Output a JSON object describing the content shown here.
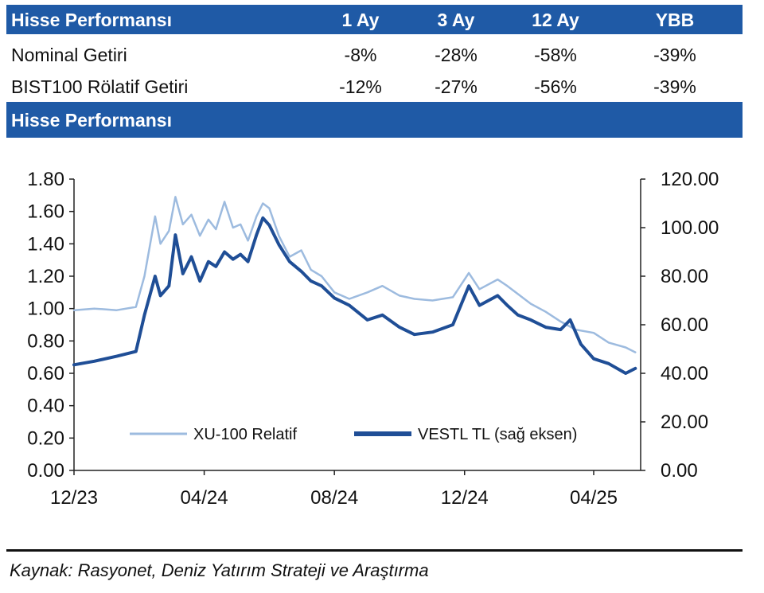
{
  "table": {
    "header": {
      "title": "Hisse Performansı",
      "cols": [
        "1 Ay",
        "3 Ay",
        "12 Ay",
        "YBB"
      ]
    },
    "rows": [
      {
        "label": "Nominal Getiri",
        "values": [
          "-8%",
          "-28%",
          "-58%",
          "-39%"
        ]
      },
      {
        "label": "BIST100 Rölatif Getiri",
        "values": [
          "-12%",
          "-27%",
          "-56%",
          "-39%"
        ]
      }
    ],
    "colors": {
      "header_bg": "#1f5aa6",
      "header_text": "#ffffff"
    }
  },
  "chart_section": {
    "title": "Hisse Performansı"
  },
  "chart_data": {
    "type": "line",
    "x_ticks": [
      "12/23",
      "04/24",
      "08/24",
      "12/24",
      "04/25"
    ],
    "left_axis": {
      "ylim": [
        0.0,
        1.8
      ],
      "ticks": [
        "0.00",
        "0.20",
        "0.40",
        "0.60",
        "0.80",
        "1.00",
        "1.20",
        "1.40",
        "1.60",
        "1.80"
      ]
    },
    "right_axis": {
      "ylim": [
        0.0,
        120.0
      ],
      "ticks": [
        "0.00",
        "20.00",
        "40.00",
        "60.00",
        "80.00",
        "100.00",
        "120.00"
      ]
    },
    "x_domain": [
      "2023-12-01",
      "2025-05-15"
    ],
    "series": [
      {
        "name": "XU-100 Relatif",
        "axis": "left",
        "color": "#9dbbdf",
        "points": [
          [
            "2023-12-01",
            0.99
          ],
          [
            "2023-12-20",
            1.0
          ],
          [
            "2024-01-10",
            0.99
          ],
          [
            "2024-01-28",
            1.01
          ],
          [
            "2024-02-05",
            1.2
          ],
          [
            "2024-02-15",
            1.57
          ],
          [
            "2024-02-20",
            1.4
          ],
          [
            "2024-02-28",
            1.48
          ],
          [
            "2024-03-05",
            1.69
          ],
          [
            "2024-03-12",
            1.52
          ],
          [
            "2024-03-20",
            1.58
          ],
          [
            "2024-03-28",
            1.45
          ],
          [
            "2024-04-05",
            1.55
          ],
          [
            "2024-04-12",
            1.49
          ],
          [
            "2024-04-20",
            1.66
          ],
          [
            "2024-04-28",
            1.5
          ],
          [
            "2024-05-05",
            1.52
          ],
          [
            "2024-05-12",
            1.42
          ],
          [
            "2024-05-20",
            1.57
          ],
          [
            "2024-05-26",
            1.65
          ],
          [
            "2024-06-01",
            1.62
          ],
          [
            "2024-06-10",
            1.45
          ],
          [
            "2024-06-20",
            1.32
          ],
          [
            "2024-07-01",
            1.36
          ],
          [
            "2024-07-10",
            1.24
          ],
          [
            "2024-07-20",
            1.2
          ],
          [
            "2024-08-01",
            1.1
          ],
          [
            "2024-08-15",
            1.06
          ],
          [
            "2024-09-01",
            1.1
          ],
          [
            "2024-09-15",
            1.14
          ],
          [
            "2024-10-01",
            1.08
          ],
          [
            "2024-10-15",
            1.06
          ],
          [
            "2024-11-01",
            1.05
          ],
          [
            "2024-11-20",
            1.07
          ],
          [
            "2024-12-05",
            1.22
          ],
          [
            "2024-12-15",
            1.12
          ],
          [
            "2025-01-01",
            1.18
          ],
          [
            "2025-01-10",
            1.14
          ],
          [
            "2025-01-20",
            1.09
          ],
          [
            "2025-02-01",
            1.03
          ],
          [
            "2025-02-15",
            0.98
          ],
          [
            "2025-03-01",
            0.92
          ],
          [
            "2025-03-15",
            0.87
          ],
          [
            "2025-04-01",
            0.85
          ],
          [
            "2025-04-15",
            0.79
          ],
          [
            "2025-05-01",
            0.76
          ],
          [
            "2025-05-10",
            0.73
          ]
        ]
      },
      {
        "name": "VESTL TL (sağ eksen)",
        "axis": "right",
        "color": "#1f4e96",
        "points": [
          [
            "2023-12-01",
            43.5
          ],
          [
            "2023-12-20",
            45.0
          ],
          [
            "2024-01-10",
            47.0
          ],
          [
            "2024-01-28",
            49.0
          ],
          [
            "2024-02-05",
            64.0
          ],
          [
            "2024-02-15",
            80.0
          ],
          [
            "2024-02-20",
            72.0
          ],
          [
            "2024-02-28",
            76.0
          ],
          [
            "2024-03-05",
            97.0
          ],
          [
            "2024-03-12",
            81.0
          ],
          [
            "2024-03-20",
            88.0
          ],
          [
            "2024-03-28",
            78.0
          ],
          [
            "2024-04-05",
            86.0
          ],
          [
            "2024-04-12",
            84.0
          ],
          [
            "2024-04-20",
            90.0
          ],
          [
            "2024-04-28",
            87.0
          ],
          [
            "2024-05-05",
            89.0
          ],
          [
            "2024-05-12",
            86.0
          ],
          [
            "2024-05-20",
            97.0
          ],
          [
            "2024-05-26",
            104.0
          ],
          [
            "2024-06-01",
            101.0
          ],
          [
            "2024-06-10",
            93.0
          ],
          [
            "2024-06-20",
            86.0
          ],
          [
            "2024-07-01",
            82.0
          ],
          [
            "2024-07-10",
            78.0
          ],
          [
            "2024-07-20",
            76.0
          ],
          [
            "2024-08-01",
            71.0
          ],
          [
            "2024-08-15",
            68.0
          ],
          [
            "2024-09-01",
            62.0
          ],
          [
            "2024-09-15",
            64.0
          ],
          [
            "2024-10-01",
            59.0
          ],
          [
            "2024-10-15",
            56.0
          ],
          [
            "2024-11-01",
            57.0
          ],
          [
            "2024-11-20",
            60.0
          ],
          [
            "2024-12-05",
            76.0
          ],
          [
            "2024-12-15",
            68.0
          ],
          [
            "2025-01-01",
            72.0
          ],
          [
            "2025-01-10",
            68.0
          ],
          [
            "2025-01-20",
            64.0
          ],
          [
            "2025-02-01",
            62.0
          ],
          [
            "2025-02-15",
            59.0
          ],
          [
            "2025-03-01",
            58.0
          ],
          [
            "2025-03-10",
            62.0
          ],
          [
            "2025-03-20",
            52.0
          ],
          [
            "2025-04-01",
            46.0
          ],
          [
            "2025-04-15",
            44.0
          ],
          [
            "2025-05-01",
            40.0
          ],
          [
            "2025-05-10",
            42.0
          ]
        ]
      }
    ],
    "legend_placement": "bottom-right",
    "grid": false
  },
  "source": "Kaynak: Rasyonet, Deniz Yatırım Strateji ve Araştırma"
}
